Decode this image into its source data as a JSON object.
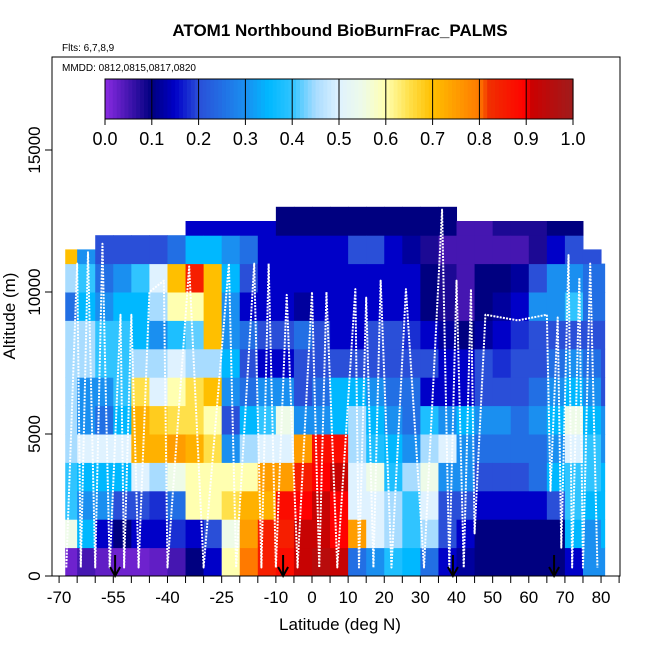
{
  "chart_data": {
    "type": "heatmap",
    "title": "ATOM1 Northbound BioBurnFrac_PALMS",
    "subtitle": "Flts: 6,7,8,9",
    "annotation": "MMDD: 0812,0815,0817,0820",
    "xlabel": "Latitude (deg N)",
    "ylabel": "Altitude (m)",
    "xlim": [
      -70,
      85
    ],
    "ylim": [
      0,
      17500
    ],
    "x_ticks": [
      -70,
      -65,
      -60,
      -55,
      -50,
      -45,
      -40,
      -35,
      -30,
      -25,
      -20,
      -15,
      -10,
      -5,
      0,
      5,
      10,
      15,
      20,
      25,
      30,
      35,
      40,
      45,
      50,
      55,
      60,
      65,
      70,
      75,
      80,
      85
    ],
    "x_tick_labels": [
      {
        "v": -70,
        "t": "-70"
      },
      {
        "v": -55,
        "t": "-55"
      },
      {
        "v": -40,
        "t": "-40"
      },
      {
        "v": -25,
        "t": "-25"
      },
      {
        "v": -10,
        "t": "-10"
      },
      {
        "v": 0,
        "t": "0"
      },
      {
        "v": 10,
        "t": "10"
      },
      {
        "v": 20,
        "t": "20"
      },
      {
        "v": 30,
        "t": "30"
      },
      {
        "v": 40,
        "t": "40"
      },
      {
        "v": 50,
        "t": "50"
      },
      {
        "v": 60,
        "t": "60"
      },
      {
        "v": 70,
        "t": "70"
      },
      {
        "v": 80,
        "t": "80"
      }
    ],
    "y_ticks": [
      {
        "v": 0,
        "t": "0"
      },
      {
        "v": 5000,
        "t": "5000"
      },
      {
        "v": 10000,
        "t": "10000"
      },
      {
        "v": 15000,
        "t": "15000"
      }
    ],
    "colorbar": {
      "range": [
        0,
        1
      ],
      "tick_labels": [
        "0.0",
        "0.1",
        "0.2",
        "0.3",
        "0.4",
        "0.5",
        "0.6",
        "0.7",
        "0.8",
        "0.9",
        "1.0"
      ],
      "stops": [
        [
          0.0,
          "#8a2be2"
        ],
        [
          0.1,
          "#000080"
        ],
        [
          0.15,
          "#0000c8"
        ],
        [
          0.2,
          "#2a4fd8"
        ],
        [
          0.3,
          "#1a8ff0"
        ],
        [
          0.35,
          "#00b8ff"
        ],
        [
          0.4,
          "#30c4ff"
        ],
        [
          0.45,
          "#a8dcff"
        ],
        [
          0.5,
          "#dff2ff"
        ],
        [
          0.55,
          "#eefbe8"
        ],
        [
          0.6,
          "#ffffb0"
        ],
        [
          0.65,
          "#ffe04a"
        ],
        [
          0.7,
          "#ffbf00"
        ],
        [
          0.8,
          "#ff7a00"
        ],
        [
          0.82,
          "#f03000"
        ],
        [
          0.9,
          "#ff0000"
        ],
        [
          0.91,
          "#cc0000"
        ],
        [
          1.0,
          "#a01c1c"
        ]
      ]
    },
    "altitude_bin_m": 1000,
    "columns": [
      {
        "lat": [
          -68.3,
          -65
        ],
        "top": 11500,
        "v": [
          0.02,
          0.55,
          0.4,
          0.4,
          0.45,
          0.45,
          0.45,
          0.45,
          0.45,
          0.25,
          0.45,
          0.7
        ]
      },
      {
        "lat": [
          -65,
          -60
        ],
        "top": 11500,
        "v": [
          0.05,
          0.35,
          0.3,
          0.35,
          0.5,
          0.3,
          0.3,
          0.45,
          0.45,
          0.35,
          0.4,
          0.3
        ]
      },
      {
        "lat": [
          -60,
          -55
        ],
        "top": 12000,
        "v": [
          0.03,
          0.15,
          0.3,
          0.35,
          0.5,
          0.25,
          0.3,
          0.4,
          0.4,
          0.3,
          0.25,
          0.2
        ]
      },
      {
        "lat": [
          -55,
          -50
        ],
        "top": 12000,
        "v": [
          0.02,
          0.1,
          0.2,
          0.35,
          0.5,
          0.35,
          0.4,
          0.4,
          0.4,
          0.35,
          0.3,
          0.2
        ]
      },
      {
        "lat": [
          -50,
          -45
        ],
        "top": 12000,
        "v": [
          0.02,
          0.15,
          0.2,
          0.5,
          0.72,
          0.72,
          0.65,
          0.45,
          0.35,
          0.35,
          0.4,
          0.2
        ]
      },
      {
        "lat": [
          -45,
          -40
        ],
        "top": 12000,
        "v": [
          0.03,
          0.15,
          0.18,
          0.45,
          0.72,
          0.68,
          0.5,
          0.45,
          0.3,
          0.45,
          0.5,
          0.2
        ]
      },
      {
        "lat": [
          -40,
          -35
        ],
        "top": 12000,
        "v": [
          0.05,
          0.18,
          0.25,
          0.55,
          0.75,
          0.65,
          0.6,
          0.5,
          0.38,
          0.6,
          0.7,
          0.25
        ]
      },
      {
        "lat": [
          -35,
          -30
        ],
        "top": 12500,
        "v": [
          0.1,
          0.15,
          0.6,
          0.6,
          0.72,
          0.65,
          0.65,
          0.45,
          0.42,
          0.6,
          0.85,
          0.35,
          0.15
        ]
      },
      {
        "lat": [
          -30,
          -25
        ],
        "top": 12500,
        "v": [
          0.15,
          0.2,
          0.6,
          0.6,
          0.65,
          0.6,
          0.7,
          0.45,
          0.7,
          0.7,
          0.7,
          0.35,
          0.15
        ]
      },
      {
        "lat": [
          -25,
          -20
        ],
        "top": 12500,
        "v": [
          0.6,
          0.55,
          0.65,
          0.6,
          0.3,
          0.2,
          0.3,
          0.35,
          0.3,
          0.3,
          0.35,
          0.3,
          0.15
        ]
      },
      {
        "lat": [
          -20,
          -15
        ],
        "top": 12500,
        "v": [
          0.8,
          0.75,
          0.72,
          0.6,
          0.45,
          0.35,
          0.25,
          0.2,
          0.25,
          0.15,
          0.2,
          0.25,
          0.15
        ]
      },
      {
        "lat": [
          -15,
          -10
        ],
        "top": 12500,
        "v": [
          0.85,
          0.85,
          0.72,
          0.75,
          0.5,
          0.4,
          0.3,
          0.15,
          0.2,
          0.15,
          0.15,
          0.15,
          0.15
        ]
      },
      {
        "lat": [
          -10,
          -5
        ],
        "top": 13000,
        "v": [
          0.88,
          0.85,
          0.88,
          0.75,
          0.5,
          0.55,
          0.3,
          0.15,
          0.2,
          0.15,
          0.15,
          0.15,
          0.1
        ]
      },
      {
        "lat": [
          -5,
          0
        ],
        "top": 13000,
        "v": [
          0.92,
          0.92,
          0.9,
          0.85,
          0.75,
          0.3,
          0.2,
          0.2,
          0.25,
          0.12,
          0.15,
          0.15,
          0.1
        ]
      },
      {
        "lat": [
          0,
          5
        ],
        "top": 13000,
        "v": [
          0.95,
          0.92,
          0.92,
          0.9,
          0.88,
          0.3,
          0.25,
          0.2,
          0.2,
          0.15,
          0.15,
          0.15,
          0.1
        ]
      },
      {
        "lat": [
          5,
          10
        ],
        "top": 13000,
        "v": [
          0.92,
          0.9,
          0.9,
          0.92,
          0.88,
          0.35,
          0.35,
          0.2,
          0.15,
          0.15,
          0.15,
          0.15,
          0.1
        ]
      },
      {
        "lat": [
          10,
          15
        ],
        "top": 13000,
        "v": [
          0.25,
          0.75,
          0.5,
          0.5,
          0.45,
          0.45,
          0.35,
          0.2,
          0.15,
          0.15,
          0.15,
          0.2,
          0.1
        ]
      },
      {
        "lat": [
          15,
          20
        ],
        "top": 13000,
        "v": [
          0.3,
          0.5,
          0.5,
          0.55,
          0.38,
          0.35,
          0.3,
          0.2,
          0.2,
          0.15,
          0.15,
          0.2,
          0.1
        ]
      },
      {
        "lat": [
          20,
          25
        ],
        "top": 13000,
        "v": [
          0.38,
          0.45,
          0.45,
          0.38,
          0.35,
          0.3,
          0.25,
          0.2,
          0.2,
          0.15,
          0.15,
          0.15,
          0.1
        ]
      },
      {
        "lat": [
          25,
          30
        ],
        "top": 13000,
        "v": [
          0.35,
          0.4,
          0.4,
          0.45,
          0.3,
          0.25,
          0.25,
          0.2,
          0.18,
          0.15,
          0.15,
          0.12,
          0.1
        ]
      },
      {
        "lat": [
          30,
          35
        ],
        "top": 13000,
        "v": [
          0.25,
          0.45,
          0.5,
          0.55,
          0.45,
          0.38,
          0.15,
          0.2,
          0.15,
          0.1,
          0.1,
          0.08,
          0.1
        ]
      },
      {
        "lat": [
          35,
          40
        ],
        "top": 13000,
        "v": [
          0.15,
          0.2,
          0.2,
          0.3,
          0.5,
          0.3,
          0.15,
          0.15,
          0.12,
          0.08,
          0.08,
          0.05,
          0.1
        ]
      },
      {
        "lat": [
          40,
          45
        ],
        "top": 12500,
        "v": [
          0.12,
          0.15,
          0.2,
          0.3,
          0.3,
          0.35,
          0.15,
          0.15,
          0.1,
          0.05,
          0.05,
          0.05,
          0.05
        ]
      },
      {
        "lat": [
          45,
          50
        ],
        "top": 12500,
        "v": [
          0.1,
          0.1,
          0.15,
          0.2,
          0.25,
          0.3,
          0.2,
          0.2,
          0.12,
          0.1,
          0.1,
          0.05,
          0.05
        ]
      },
      {
        "lat": [
          50,
          55
        ],
        "top": 12500,
        "v": [
          0.1,
          0.1,
          0.15,
          0.2,
          0.25,
          0.3,
          0.2,
          0.18,
          0.15,
          0.12,
          0.1,
          0.05,
          0.08
        ]
      },
      {
        "lat": [
          55,
          60
        ],
        "top": 12500,
        "v": [
          0.1,
          0.1,
          0.15,
          0.2,
          0.25,
          0.25,
          0.2,
          0.2,
          0.18,
          0.15,
          0.12,
          0.05,
          0.08
        ]
      },
      {
        "lat": [
          60,
          65
        ],
        "top": 12500,
        "v": [
          0.1,
          0.1,
          0.15,
          0.25,
          0.25,
          0.3,
          0.25,
          0.2,
          0.2,
          0.3,
          0.2,
          0.08,
          0.08
        ]
      },
      {
        "lat": [
          65,
          70
        ],
        "top": 12500,
        "v": [
          0.1,
          0.1,
          0.2,
          0.35,
          0.3,
          0.35,
          0.3,
          0.25,
          0.2,
          0.3,
          0.3,
          0.15,
          0.1
        ]
      },
      {
        "lat": [
          70,
          75
        ],
        "top": 12500,
        "v": [
          0.15,
          0.35,
          0.4,
          0.4,
          0.5,
          0.55,
          0.35,
          0.3,
          0.2,
          0.4,
          0.3,
          0.2,
          0.1
        ]
      },
      {
        "lat": [
          75,
          80
        ],
        "top": 11500,
        "v": [
          0.3,
          0.3,
          0.35,
          0.4,
          0.4,
          0.35,
          0.3,
          0.25,
          0.2,
          0.25,
          0.25,
          0.2
        ]
      },
      {
        "lat": [
          80,
          81
        ],
        "top": 11000,
        "v": [
          0.3,
          0.35,
          0.35,
          0.35,
          0.3,
          0.3,
          0.2,
          0.2,
          0.2,
          0.25,
          0.25
        ]
      }
    ],
    "flight_track": [
      [
        -68,
        300
      ],
      [
        -65,
        11000
      ],
      [
        -64,
        300
      ],
      [
        -62,
        11400
      ],
      [
        -60,
        300
      ],
      [
        -58,
        11700
      ],
      [
        -56,
        300
      ],
      [
        -53,
        9200
      ],
      [
        -52,
        300
      ],
      [
        -50,
        9200
      ],
      [
        -48,
        300
      ],
      [
        -45,
        10000
      ],
      [
        -41,
        10400
      ],
      [
        -40,
        300
      ],
      [
        -34,
        10900
      ],
      [
        -30,
        300
      ],
      [
        -23,
        11000
      ],
      [
        -21,
        300
      ],
      [
        -16,
        11000
      ],
      [
        -14,
        300
      ],
      [
        -12,
        11000
      ],
      [
        -10,
        300
      ],
      [
        -7,
        9900
      ],
      [
        -4,
        300
      ],
      [
        0,
        10000
      ],
      [
        2,
        300
      ],
      [
        4,
        10000
      ],
      [
        7,
        300
      ],
      [
        12,
        10100
      ],
      [
        13,
        300
      ],
      [
        15,
        9800
      ],
      [
        17,
        300
      ],
      [
        19,
        10400
      ],
      [
        22,
        300
      ],
      [
        26,
        10100
      ],
      [
        31,
        300
      ],
      [
        36,
        12900
      ],
      [
        38,
        300
      ],
      [
        40,
        10400
      ],
      [
        42,
        300
      ],
      [
        44,
        10100
      ],
      [
        45,
        1500
      ],
      [
        48,
        9200
      ],
      [
        57,
        9000
      ],
      [
        65,
        9200
      ],
      [
        66,
        3000
      ],
      [
        68,
        9100
      ],
      [
        69,
        1000
      ],
      [
        71,
        11300
      ],
      [
        72,
        300
      ],
      [
        74,
        10500
      ],
      [
        75,
        300
      ],
      [
        77,
        11000
      ],
      [
        79,
        300
      ]
    ],
    "markers": [
      -54.5,
      -8,
      39,
      67
    ]
  }
}
